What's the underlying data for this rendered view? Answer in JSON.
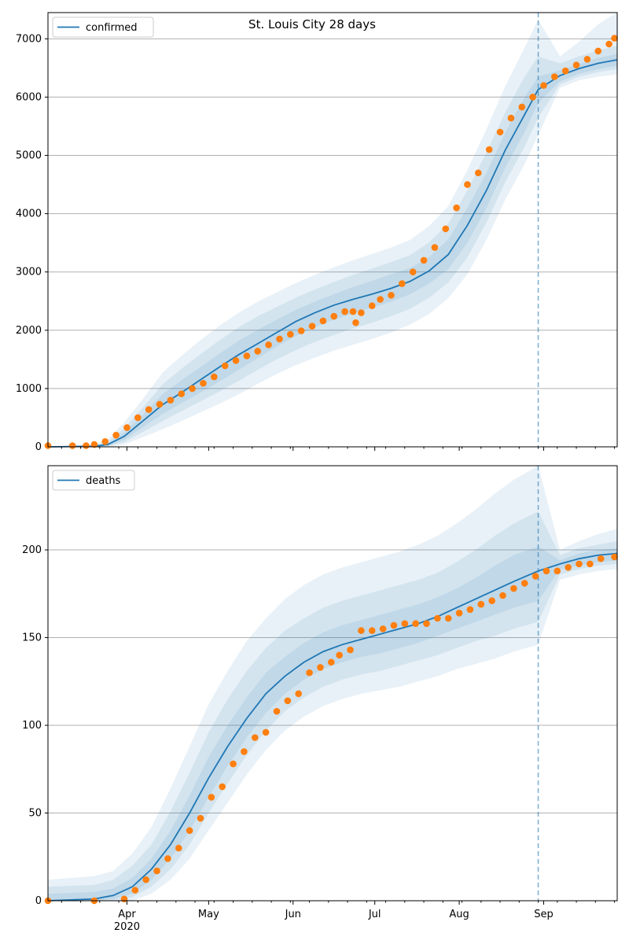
{
  "title": "St. Louis City 28 days",
  "colors": {
    "model": "#1f77b4",
    "observed": "#ff7f0e",
    "grid": "#b0b0b0"
  },
  "chart_data": [
    {
      "type": "line",
      "legend": [
        "confirmed"
      ],
      "legend_position": "upper-left",
      "grid": "horizontal",
      "xlim": [
        "2020-03-03",
        "2020-09-28"
      ],
      "ylim": [
        0,
        7450
      ],
      "yticks": [
        0,
        1000,
        2000,
        3000,
        4000,
        5000,
        6000,
        7000
      ],
      "forecast_start": "2020-08-30",
      "model": {
        "x": [
          "2020-03-03",
          "2020-03-20",
          "2020-03-25",
          "2020-03-31",
          "2020-04-07",
          "2020-04-14",
          "2020-04-21",
          "2020-04-28",
          "2020-05-05",
          "2020-05-12",
          "2020-05-19",
          "2020-05-26",
          "2020-06-02",
          "2020-06-09",
          "2020-06-16",
          "2020-06-23",
          "2020-06-30",
          "2020-07-07",
          "2020-07-14",
          "2020-07-21",
          "2020-07-28",
          "2020-08-04",
          "2020-08-11",
          "2020-08-18",
          "2020-08-25",
          "2020-08-30",
          "2020-09-07",
          "2020-09-14",
          "2020-09-21",
          "2020-09-28"
        ],
        "y": [
          0,
          10,
          40,
          180,
          450,
          720,
          930,
          1150,
          1370,
          1580,
          1770,
          1960,
          2150,
          2300,
          2430,
          2530,
          2620,
          2720,
          2840,
          3020,
          3300,
          3800,
          4400,
          5100,
          5700,
          6130,
          6370,
          6490,
          6580,
          6640
        ],
        "band1": {
          "lo": [
            0,
            0,
            20,
            120,
            340,
            560,
            750,
            930,
            1120,
            1320,
            1520,
            1720,
            1900,
            2050,
            2180,
            2290,
            2390,
            2490,
            2620,
            2800,
            3050,
            3500,
            4100,
            4800,
            5400,
            5900,
            6270,
            6400,
            6480,
            6540
          ],
          "hi": [
            0,
            20,
            60,
            250,
            560,
            900,
            1140,
            1370,
            1600,
            1820,
            2010,
            2180,
            2350,
            2490,
            2620,
            2740,
            2850,
            2960,
            3070,
            3260,
            3560,
            4100,
            4700,
            5400,
            6000,
            6350,
            6460,
            6570,
            6670,
            6740
          ]
        },
        "band2": {
          "lo": [
            0,
            0,
            10,
            80,
            260,
            440,
            610,
            780,
            950,
            1130,
            1320,
            1500,
            1660,
            1800,
            1920,
            2030,
            2130,
            2240,
            2370,
            2560,
            2820,
            3250,
            3850,
            4550,
            5150,
            5650,
            6220,
            6350,
            6430,
            6480
          ],
          "hi": [
            0,
            30,
            90,
            320,
            680,
            1070,
            1340,
            1590,
            1830,
            2050,
            2240,
            2400,
            2560,
            2700,
            2830,
            2950,
            3060,
            3170,
            3290,
            3510,
            3830,
            4400,
            5050,
            5750,
            6350,
            6700,
            6580,
            6700,
            6800,
            6880
          ]
        },
        "band3": {
          "lo": [
            0,
            0,
            0,
            40,
            170,
            300,
            440,
            590,
            740,
            900,
            1080,
            1250,
            1400,
            1530,
            1650,
            1750,
            1850,
            1960,
            2100,
            2280,
            2550,
            2960,
            3550,
            4250,
            4850,
            5350,
            6160,
            6290,
            6350,
            6390
          ],
          "hi": [
            0,
            40,
            130,
            420,
            830,
            1270,
            1560,
            1830,
            2080,
            2300,
            2490,
            2650,
            2810,
            2950,
            3080,
            3200,
            3310,
            3420,
            3550,
            3790,
            4130,
            4750,
            5450,
            6200,
            6850,
            7330,
            6700,
            6950,
            7250,
            7450
          ]
        }
      },
      "observed": {
        "x": [
          "2020-03-03",
          "2020-03-12",
          "2020-03-17",
          "2020-03-20",
          "2020-03-24",
          "2020-03-28",
          "2020-04-01",
          "2020-04-05",
          "2020-04-09",
          "2020-04-13",
          "2020-04-17",
          "2020-04-21",
          "2020-04-25",
          "2020-04-29",
          "2020-05-03",
          "2020-05-07",
          "2020-05-11",
          "2020-05-15",
          "2020-05-19",
          "2020-05-23",
          "2020-05-27",
          "2020-05-31",
          "2020-06-04",
          "2020-06-08",
          "2020-06-12",
          "2020-06-16",
          "2020-06-20",
          "2020-06-23",
          "2020-06-24",
          "2020-06-26",
          "2020-06-30",
          "2020-07-03",
          "2020-07-07",
          "2020-07-11",
          "2020-07-15",
          "2020-07-19",
          "2020-07-23",
          "2020-07-27",
          "2020-07-31",
          "2020-08-04",
          "2020-08-08",
          "2020-08-12",
          "2020-08-16",
          "2020-08-20",
          "2020-08-24",
          "2020-08-28",
          "2020-09-01",
          "2020-09-05",
          "2020-09-09",
          "2020-09-13",
          "2020-09-17",
          "2020-09-21",
          "2020-09-25",
          "2020-09-27"
        ],
        "y": [
          20,
          20,
          20,
          40,
          90,
          200,
          330,
          500,
          640,
          730,
          800,
          910,
          1000,
          1090,
          1200,
          1390,
          1480,
          1560,
          1640,
          1750,
          1850,
          1930,
          1990,
          2070,
          2160,
          2240,
          2320,
          2320,
          2130,
          2300,
          2420,
          2530,
          2600,
          2800,
          3000,
          3200,
          3420,
          3740,
          4100,
          4500,
          4700,
          5100,
          5400,
          5640,
          5830,
          6000,
          6200,
          6350,
          6450,
          6550,
          6650,
          6790,
          6910,
          7010
        ]
      }
    },
    {
      "type": "line",
      "legend": [
        "deaths"
      ],
      "legend_position": "upper-left",
      "grid": "horizontal",
      "xlim": [
        "2020-03-03",
        "2020-09-28"
      ],
      "ylim": [
        0,
        248
      ],
      "yticks": [
        0,
        50,
        100,
        150,
        200
      ],
      "xticks": [
        "Apr",
        "May",
        "Jun",
        "Jul",
        "Aug",
        "Sep"
      ],
      "year_label": "2020",
      "forecast_start": "2020-08-30",
      "model": {
        "x": [
          "2020-03-03",
          "2020-03-20",
          "2020-03-27",
          "2020-04-03",
          "2020-04-10",
          "2020-04-17",
          "2020-04-24",
          "2020-05-01",
          "2020-05-08",
          "2020-05-15",
          "2020-05-22",
          "2020-05-29",
          "2020-06-05",
          "2020-06-12",
          "2020-06-19",
          "2020-06-26",
          "2020-07-03",
          "2020-07-10",
          "2020-07-17",
          "2020-07-24",
          "2020-07-31",
          "2020-08-07",
          "2020-08-14",
          "2020-08-21",
          "2020-08-30",
          "2020-09-07",
          "2020-09-14",
          "2020-09-21",
          "2020-09-28"
        ],
        "y": [
          0,
          1,
          3,
          8,
          18,
          32,
          50,
          70,
          88,
          104,
          118,
          128,
          136,
          142,
          146,
          149,
          152,
          155,
          158,
          162,
          167,
          172,
          177,
          182,
          188,
          192,
          195,
          197,
          198
        ],
        "band1": {
          "lo": [
            0,
            0,
            1,
            4,
            12,
            24,
            40,
            59,
            77,
            93,
            107,
            118,
            126,
            132,
            136,
            139,
            141,
            144,
            147,
            151,
            155,
            159,
            163,
            167,
            171,
            189,
            191,
            193,
            194
          ],
          "hi": [
            4,
            5,
            7,
            13,
            24,
            40,
            60,
            82,
            100,
            116,
            130,
            139,
            147,
            153,
            157,
            160,
            163,
            166,
            169,
            173,
            178,
            184,
            191,
            197,
            202,
            194,
            198,
            200,
            201
          ]
        },
        "band2": {
          "lo": [
            0,
            0,
            0,
            2,
            8,
            18,
            32,
            50,
            67,
            83,
            97,
            108,
            116,
            122,
            126,
            129,
            131,
            134,
            137,
            140,
            144,
            148,
            151,
            155,
            159,
            186,
            189,
            191,
            192
          ],
          "hi": [
            8,
            9,
            12,
            20,
            32,
            51,
            73,
            96,
            115,
            131,
            144,
            154,
            161,
            167,
            171,
            174,
            177,
            180,
            183,
            187,
            193,
            200,
            208,
            215,
            222,
            197,
            201,
            203,
            205
          ]
        },
        "band3": {
          "lo": [
            0,
            0,
            0,
            0,
            4,
            12,
            24,
            40,
            56,
            72,
            86,
            97,
            105,
            111,
            115,
            118,
            120,
            122,
            125,
            128,
            132,
            135,
            138,
            142,
            146,
            183,
            186,
            188,
            189
          ],
          "hi": [
            12,
            14,
            17,
            27,
            42,
            64,
            88,
            112,
            131,
            148,
            161,
            172,
            180,
            186,
            190,
            193,
            196,
            199,
            203,
            208,
            215,
            223,
            232,
            240,
            248,
            200,
            205,
            209,
            212
          ]
        }
      },
      "observed": {
        "x": [
          "2020-03-03",
          "2020-03-20",
          "2020-03-31",
          "2020-04-04",
          "2020-04-08",
          "2020-04-12",
          "2020-04-16",
          "2020-04-20",
          "2020-04-24",
          "2020-04-28",
          "2020-05-02",
          "2020-05-06",
          "2020-05-10",
          "2020-05-14",
          "2020-05-18",
          "2020-05-22",
          "2020-05-26",
          "2020-05-30",
          "2020-06-03",
          "2020-06-07",
          "2020-06-11",
          "2020-06-15",
          "2020-06-18",
          "2020-06-22",
          "2020-06-26",
          "2020-06-30",
          "2020-07-04",
          "2020-07-08",
          "2020-07-12",
          "2020-07-16",
          "2020-07-20",
          "2020-07-24",
          "2020-07-28",
          "2020-08-01",
          "2020-08-05",
          "2020-08-09",
          "2020-08-13",
          "2020-08-17",
          "2020-08-21",
          "2020-08-25",
          "2020-08-29",
          "2020-09-02",
          "2020-09-06",
          "2020-09-10",
          "2020-09-14",
          "2020-09-18",
          "2020-09-22",
          "2020-09-27"
        ],
        "y": [
          0,
          0,
          1,
          6,
          12,
          17,
          24,
          30,
          40,
          47,
          59,
          65,
          78,
          85,
          93,
          96,
          108,
          114,
          118,
          130,
          133,
          136,
          140,
          143,
          154,
          154,
          155,
          157,
          158,
          158,
          158,
          161,
          161,
          164,
          166,
          169,
          171,
          174,
          178,
          181,
          185,
          188,
          188,
          190,
          192,
          192,
          195,
          196
        ]
      }
    }
  ]
}
